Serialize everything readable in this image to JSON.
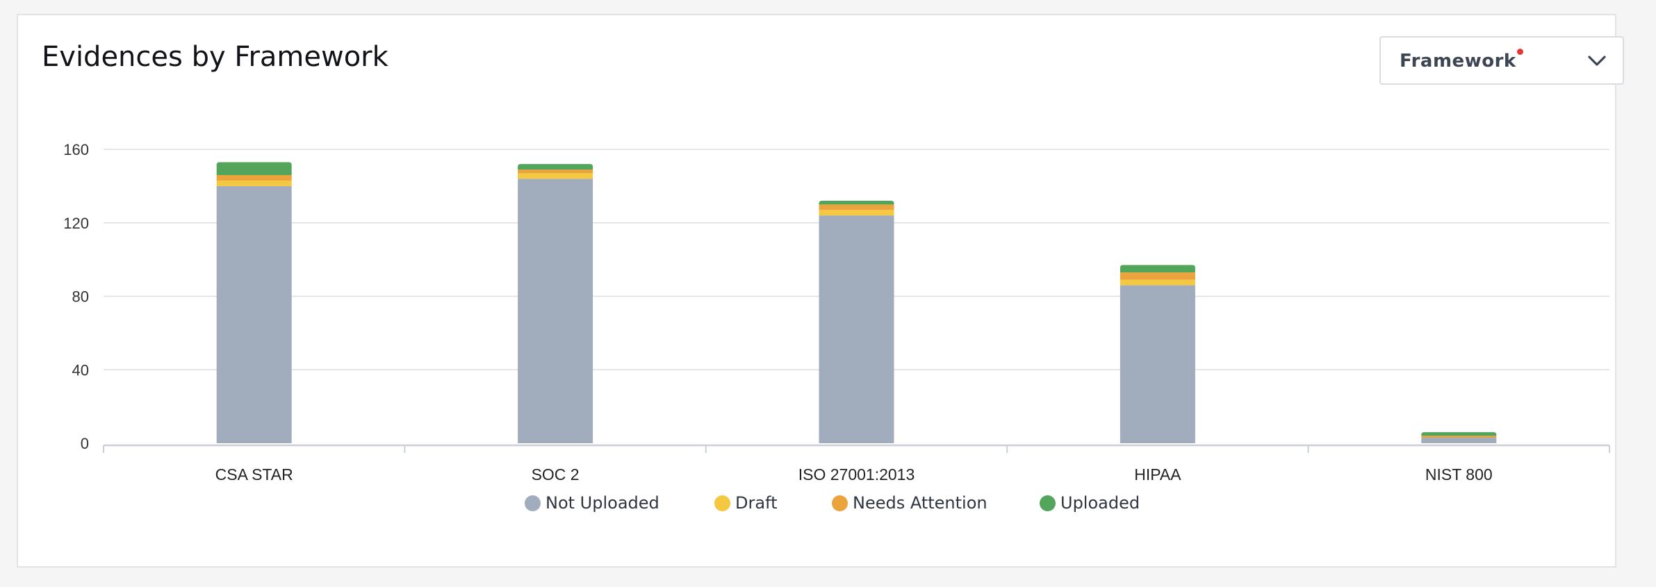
{
  "card": {
    "title": "Evidences by Framework"
  },
  "framework_select": {
    "label": "Framework",
    "icon": "chevron-down-icon",
    "indicator_color": "#e53935"
  },
  "chart_data": {
    "type": "bar",
    "stacked": true,
    "title": "Evidences by Framework",
    "xlabel": "",
    "ylabel": "",
    "ylim": [
      0,
      160
    ],
    "yticks": [
      0,
      40,
      80,
      120,
      160
    ],
    "grid": true,
    "legend_position": "bottom-center",
    "categories": [
      "CSA STAR",
      "SOC 2",
      "ISO 27001:2013",
      "HIPAA",
      "NIST 800"
    ],
    "series": [
      {
        "name": "Not Uploaded",
        "color": "#a1acbc",
        "values": [
          140,
          144,
          124,
          86,
          3
        ]
      },
      {
        "name": "Draft",
        "color": "#f5c842",
        "values": [
          3,
          3,
          3,
          3,
          0
        ]
      },
      {
        "name": "Needs Attention",
        "color": "#eba33b",
        "values": [
          3,
          2,
          3,
          4,
          1
        ]
      },
      {
        "name": "Uploaded",
        "color": "#52a55a",
        "values": [
          7,
          3,
          2,
          4,
          2
        ]
      }
    ]
  }
}
